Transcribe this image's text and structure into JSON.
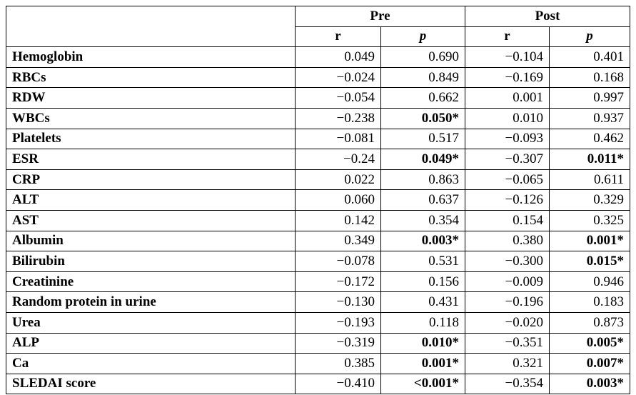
{
  "header": {
    "group_pre": "Pre",
    "group_post": "Post",
    "col_r": "r",
    "col_p": "p"
  },
  "rows": [
    {
      "label": "Hemoglobin",
      "pre_r": "0.049",
      "pre_p": "0.690",
      "post_r": "−0.104",
      "post_p": "0.401"
    },
    {
      "label": "RBCs",
      "pre_r": "−0.024",
      "pre_p": "0.849",
      "post_r": "−0.169",
      "post_p": "0.168"
    },
    {
      "label": "RDW",
      "pre_r": "−0.054",
      "pre_p": "0.662",
      "post_r": "0.001",
      "post_p": "0.997"
    },
    {
      "label": "WBCs",
      "pre_r": "−0.238",
      "pre_p": "0.050*",
      "post_r": "0.010",
      "post_p": "0.937"
    },
    {
      "label": "Platelets",
      "pre_r": "−0.081",
      "pre_p": "0.517",
      "post_r": "−0.093",
      "post_p": "0.462"
    },
    {
      "label": "ESR",
      "pre_r": "−0.24",
      "pre_p": "0.049*",
      "post_r": "−0.307",
      "post_p": "0.011*"
    },
    {
      "label": "CRP",
      "pre_r": "0.022",
      "pre_p": "0.863",
      "post_r": "−0.065",
      "post_p": "0.611"
    },
    {
      "label": "ALT",
      "pre_r": "0.060",
      "pre_p": "0.637",
      "post_r": "−0.126",
      "post_p": "0.329"
    },
    {
      "label": "AST",
      "pre_r": "0.142",
      "pre_p": "0.354",
      "post_r": "0.154",
      "post_p": "0.325"
    },
    {
      "label": "Albumin",
      "pre_r": "0.349",
      "pre_p": "0.003*",
      "post_r": "0.380",
      "post_p": "0.001*"
    },
    {
      "label": "Bilirubin",
      "pre_r": "−0.078",
      "pre_p": "0.531",
      "post_r": "−0.300",
      "post_p": "0.015*"
    },
    {
      "label": "Creatinine",
      "pre_r": "−0.172",
      "pre_p": "0.156",
      "post_r": "−0.009",
      "post_p": "0.946"
    },
    {
      "label": "Random protein in urine",
      "pre_r": "−0.130",
      "pre_p": "0.431",
      "post_r": "−0.196",
      "post_p": "0.183"
    },
    {
      "label": "Urea",
      "pre_r": "−0.193",
      "pre_p": "0.118",
      "post_r": "−0.020",
      "post_p": "0.873"
    },
    {
      "label": "ALP",
      "pre_r": "−0.319",
      "pre_p": "0.010*",
      "post_r": "−0.351",
      "post_p": "0.005*"
    },
    {
      "label": "Ca",
      "pre_r": "0.385",
      "pre_p": "0.001*",
      "post_r": "0.321",
      "post_p": "0.007*"
    },
    {
      "label": "SLEDAI score",
      "pre_r": "−0.410",
      "pre_p": "<0.001*",
      "post_r": "−0.354",
      "post_p": "0.003*"
    }
  ]
}
